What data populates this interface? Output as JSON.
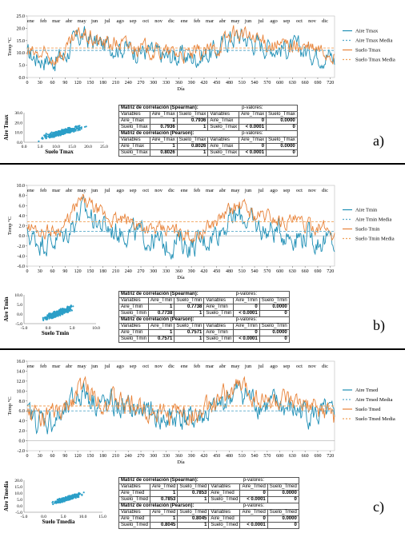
{
  "months": [
    "ene",
    "feb",
    "mar",
    "abr",
    "may",
    "jun",
    "jul",
    "ago",
    "sep",
    "oct",
    "nov",
    "dic",
    "ene",
    "feb",
    "mar",
    "abr",
    "may",
    "jun",
    "jul",
    "ago",
    "sep",
    "oct",
    "nov",
    "dic"
  ],
  "colors": {
    "aire": "#1f8fb5",
    "suelo": "#e8833a",
    "aire_mean": "#5aa9c9",
    "suelo_mean": "#f0a25a",
    "scatter": "#2b9fc8"
  },
  "chart_data": [
    {
      "panel": "a)",
      "type": "line",
      "xlabel": "Día",
      "ylabel": "Temp °C",
      "xlim": [
        0,
        730
      ],
      "ylim": [
        0.0,
        25.0
      ],
      "yticks": [
        "0.0",
        "5.0",
        "10.0",
        "15.0",
        "20.0",
        "25.0"
      ],
      "xticks": [
        0,
        30,
        60,
        90,
        120,
        150,
        180,
        210,
        240,
        270,
        300,
        330,
        360,
        390,
        420,
        450,
        480,
        510,
        540,
        570,
        600,
        630,
        660,
        690,
        720
      ],
      "series": [
        {
          "name": "Aire Tmax",
          "knots_x": [
            0,
            30,
            60,
            90,
            110,
            130,
            150,
            180,
            210,
            240,
            270,
            300,
            330,
            360,
            390,
            420,
            450,
            480,
            510,
            540,
            570,
            600,
            630,
            660,
            690,
            720,
            730
          ],
          "knots_y": [
            9,
            8,
            7,
            9,
            14,
            17,
            15,
            13,
            13,
            12,
            11,
            10,
            8,
            9,
            8,
            9,
            11,
            16,
            17,
            14,
            13,
            12,
            12,
            11,
            10,
            9,
            7
          ],
          "amp": 4.5
        },
        {
          "name": "Suelo Tmax",
          "knots_x": [
            0,
            30,
            60,
            90,
            110,
            130,
            150,
            180,
            210,
            240,
            270,
            300,
            330,
            360,
            390,
            420,
            450,
            480,
            510,
            540,
            570,
            600,
            630,
            660,
            690,
            720,
            730
          ],
          "knots_y": [
            10,
            9,
            8,
            10,
            15,
            18,
            16,
            14,
            14,
            13,
            12,
            11,
            10,
            10,
            9,
            10,
            12,
            17,
            18,
            15,
            14,
            13,
            13,
            12,
            11,
            10,
            8
          ],
          "amp": 3.5
        }
      ],
      "means": [
        {
          "name": "Aire Tmax Media",
          "value": 11.0
        },
        {
          "name": "Suelo Tmax Media",
          "value": 12.0
        }
      ],
      "legend": [
        "Aire Tmax",
        "Aire Tmax Media",
        "Suelo Tmax",
        "Suelo Tmax Media"
      ]
    },
    {
      "panel": "b)",
      "type": "line",
      "xlabel": "Día",
      "ylabel": "Temp °C",
      "xlim": [
        0,
        730
      ],
      "ylim": [
        -6.0,
        10.0
      ],
      "yticks": [
        "-6.0",
        "-4.0",
        "-2.0",
        "0.0",
        "2.0",
        "4.0",
        "6.0",
        "8.0",
        "10.0"
      ],
      "xticks": [
        0,
        30,
        60,
        90,
        120,
        150,
        180,
        210,
        240,
        270,
        300,
        330,
        360,
        390,
        420,
        450,
        480,
        510,
        540,
        570,
        600,
        630,
        660,
        690,
        720
      ],
      "series": [
        {
          "name": "Aire Tmin",
          "knots_x": [
            0,
            30,
            60,
            90,
            110,
            130,
            150,
            180,
            210,
            240,
            270,
            300,
            330,
            360,
            390,
            420,
            450,
            480,
            510,
            540,
            570,
            600,
            630,
            660,
            690,
            720,
            730
          ],
          "knots_y": [
            0,
            -1,
            -1,
            0,
            3,
            5,
            4,
            2,
            1,
            1,
            0,
            -1,
            -2,
            -1,
            -2,
            -1,
            1,
            3,
            4,
            2,
            1,
            1,
            0,
            0,
            -1,
            -1,
            -2
          ],
          "amp": 2.5
        },
        {
          "name": "Suelo Tmin",
          "knots_x": [
            0,
            30,
            60,
            90,
            110,
            130,
            150,
            180,
            210,
            240,
            270,
            300,
            330,
            360,
            390,
            420,
            450,
            480,
            510,
            540,
            570,
            600,
            630,
            660,
            690,
            720,
            730
          ],
          "knots_y": [
            2,
            1,
            1,
            2,
            5,
            7,
            6,
            4,
            3,
            3,
            2,
            1,
            1,
            1,
            0,
            1,
            3,
            5,
            6,
            4,
            4,
            3,
            3,
            2,
            2,
            1,
            0
          ],
          "amp": 1.5
        }
      ],
      "means": [
        {
          "name": "Aire Tmin Media",
          "value": 0.9
        },
        {
          "name": "Suelo Tmin Media",
          "value": 2.8
        }
      ],
      "legend": [
        "Aire Tmin",
        "Aire Tmin Media",
        "Suelo Tmin",
        "Suelo Tmin Media"
      ]
    },
    {
      "panel": "c)",
      "type": "line",
      "xlabel": "Día",
      "ylabel": "Temp °C",
      "xlim": [
        0,
        730
      ],
      "ylim": [
        -2.0,
        16.0
      ],
      "yticks": [
        "-2.0",
        "0.0",
        "2.0",
        "4.0",
        "6.0",
        "8.0",
        "10.0",
        "12.0",
        "14.0",
        "16.0"
      ],
      "xticks": [
        0,
        30,
        60,
        90,
        120,
        150,
        180,
        210,
        240,
        270,
        300,
        330,
        360,
        390,
        420,
        450,
        480,
        510,
        540,
        570,
        600,
        630,
        660,
        690,
        720
      ],
      "series": [
        {
          "name": "Aire Tmed",
          "knots_x": [
            0,
            30,
            60,
            90,
            110,
            130,
            150,
            180,
            210,
            240,
            270,
            300,
            330,
            360,
            390,
            420,
            450,
            480,
            510,
            540,
            570,
            600,
            630,
            660,
            690,
            720,
            730
          ],
          "knots_y": [
            5,
            4,
            4,
            5,
            8,
            10,
            9,
            7,
            7,
            6,
            6,
            5,
            4,
            5,
            4,
            5,
            6,
            9,
            10,
            8,
            7,
            7,
            6,
            6,
            5,
            5,
            3
          ],
          "amp": 2.8
        },
        {
          "name": "Suelo Tmed",
          "knots_x": [
            0,
            30,
            60,
            90,
            110,
            130,
            150,
            180,
            210,
            240,
            270,
            300,
            330,
            360,
            390,
            420,
            450,
            480,
            510,
            540,
            570,
            600,
            630,
            660,
            690,
            720,
            730
          ],
          "knots_y": [
            6,
            5,
            5,
            6,
            9,
            11,
            10,
            8,
            8,
            7,
            7,
            6,
            5,
            6,
            5,
            6,
            7,
            10,
            11,
            9,
            8,
            8,
            7,
            7,
            6,
            6,
            4
          ],
          "amp": 2.2
        }
      ],
      "means": [
        {
          "name": "Aire Tmed Media",
          "value": 6.0
        },
        {
          "name": "Suelo Tmed Media",
          "value": 7.0
        }
      ],
      "legend": [
        "Aire Tmed",
        "Aire Tmed Media",
        "Suelo Tmed",
        "Suelo Tmed Media"
      ]
    },
    {
      "panel": "a)-scatter",
      "type": "scatter",
      "xlabel": "Suelo Tmax",
      "ylabel": "Aire Tmax",
      "xlim": [
        0.0,
        25.0
      ],
      "ylim": [
        0.0,
        30.0
      ],
      "xticks": [
        "0.0",
        "5.0",
        "10.0",
        "15.0",
        "20.0",
        "25.0"
      ],
      "yticks": [
        "0.0",
        "10.0",
        "20.0",
        "30.0"
      ],
      "cluster": {
        "x_center": 12,
        "x_spread": 6,
        "slope": 0.85,
        "intercept": 0,
        "noise": 3
      }
    },
    {
      "panel": "b)-scatter",
      "type": "scatter",
      "xlabel": "Suelo Tmin",
      "ylabel": "Aire Tmin",
      "xlim": [
        -5.0,
        10.0
      ],
      "ylim": [
        -5.0,
        10.0
      ],
      "xticks": [
        "-5.0",
        "0.0",
        "5.0",
        "10.0"
      ],
      "yticks": [
        "-5.0",
        "0.0",
        "5.0",
        "10.0"
      ],
      "cluster": {
        "x_center": 2,
        "x_spread": 3,
        "slope": 0.95,
        "intercept": -1.5,
        "noise": 1.8
      }
    },
    {
      "panel": "c)-scatter",
      "type": "scatter",
      "xlabel": "Suelo Tmedia",
      "ylabel": "Aire Tmedia",
      "xlim": [
        -5.0,
        15.0
      ],
      "ylim": [
        -5.0,
        20.0
      ],
      "xticks": [
        "-5.0",
        "0.0",
        "5.0",
        "10.0",
        "15.0"
      ],
      "yticks": [
        "-5.0",
        "0.0",
        "5.0",
        "10.0",
        "15.0",
        "20.0"
      ],
      "cluster": {
        "x_center": 6,
        "x_spread": 3.5,
        "slope": 0.9,
        "intercept": 0.3,
        "noise": 1.8
      }
    }
  ],
  "tables": [
    {
      "spearman_title": "Matriz de correlación (Spearman):",
      "pearson_title": "Matriz de correlación (Pearson):",
      "pval_title": "p-valores:",
      "cols": [
        "Variables",
        "Aire_Tmax",
        "Suelo_Tmax",
        "Variables",
        "Aire_Tmax",
        "Suelo_Tmax"
      ],
      "spearman_rows": [
        [
          "Aire_Tmax",
          "1",
          "0.7936",
          "Aire_Tmax",
          "0",
          "0.0000"
        ],
        [
          "Suelo_Tmax",
          "0.7936",
          "1",
          "Suelo_Tmax",
          "< 0.0001",
          "0"
        ]
      ],
      "pearson_rows": [
        [
          "Aire_Tmax",
          "1",
          "0.8026",
          "Aire_Tmax",
          "0",
          "0.0000"
        ],
        [
          "Suelo_Tmax",
          "0.8026",
          "1",
          "Suelo_Tmax",
          "< 0.0001",
          "0"
        ]
      ]
    },
    {
      "spearman_title": "Matriz de correlación (Spearman):",
      "pearson_title": "Matriz de correlación (Pearson):",
      "pval_title": "p-valores:",
      "cols": [
        "Variables",
        "Aire_Tmin",
        "Suelo_Tmin",
        "Variables",
        "Aire_Tmin",
        "Suelo_Tmin"
      ],
      "spearman_rows": [
        [
          "Aire_Tmin",
          "1",
          "0.7738",
          "Aire_Tmin",
          "0",
          "0.0000"
        ],
        [
          "Suelo_Tmin",
          "0.7738",
          "1",
          "Suelo_Tmin",
          "< 0.0001",
          "0"
        ]
      ],
      "pearson_rows": [
        [
          "Aire_Tmin",
          "1",
          "0.7571",
          "Aire_Tmin",
          "0",
          "0.0000"
        ],
        [
          "Suelo_Tmin",
          "0.7571",
          "1",
          "Suelo_Tmin",
          "< 0.0001",
          "0"
        ]
      ]
    },
    {
      "spearman_title": "Matriz de correlación (Spearman):",
      "pearson_title": "Matriz de correlación (Pearson):",
      "pval_title": "p-valores:",
      "cols": [
        "Variables",
        "Aire_Tmed",
        "Suelo_Tmed",
        "Variables",
        "Aire_Tmed",
        "Suelo_Tmed"
      ],
      "spearman_rows": [
        [
          "Aire_Tmed",
          "1",
          "0.7853",
          "Aire_Tmed",
          "0",
          "0.0000"
        ],
        [
          "Suelo_Tmed",
          "0.7853",
          "1",
          "Suelo_Tmed",
          "< 0.0001",
          "0"
        ]
      ],
      "pearson_rows": [
        [
          "Aire_Tmed",
          "1",
          "0.8045",
          "Aire_Tmed",
          "0",
          "0.0000"
        ],
        [
          "Suelo_Tmed",
          "0.8045",
          "1",
          "Suelo_Tmed",
          "< 0.0001",
          "0"
        ]
      ]
    }
  ],
  "panel_letters": [
    "a)",
    "b)",
    "c)"
  ]
}
